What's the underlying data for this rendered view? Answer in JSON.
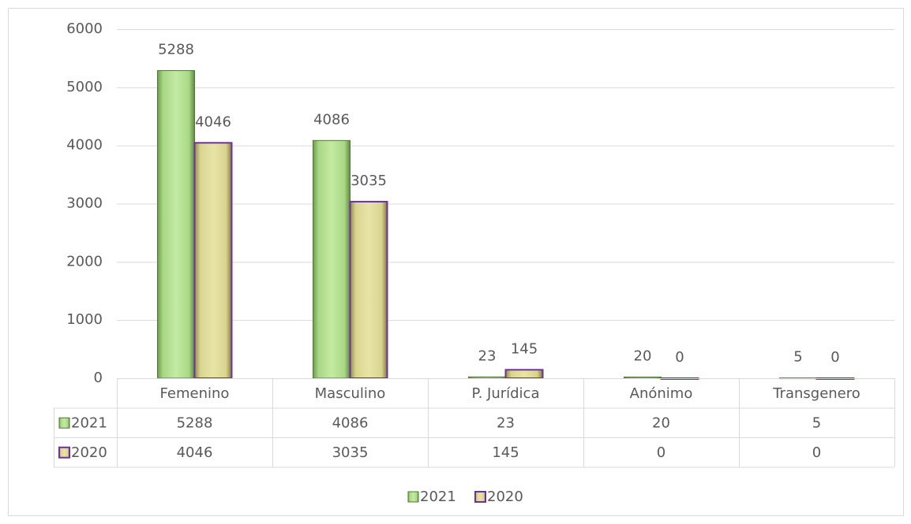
{
  "chart_data": {
    "type": "bar",
    "categories": [
      "Femenino",
      "Masculino",
      "P. Jurídica",
      "Anónimo",
      "Transgenero"
    ],
    "series": [
      {
        "name": "2021",
        "color": "#9fd07a",
        "values": [
          5288,
          4086,
          23,
          20,
          5
        ]
      },
      {
        "name": "2020",
        "color": "#d8d48f",
        "edgecolor": "#7030a0",
        "values": [
          4046,
          3035,
          145,
          0,
          0
        ]
      }
    ],
    "ylim": [
      0,
      6000
    ],
    "yticks": [
      0,
      1000,
      2000,
      3000,
      4000,
      5000,
      6000
    ],
    "grid": true,
    "data_table": true,
    "legend": "bottom"
  }
}
